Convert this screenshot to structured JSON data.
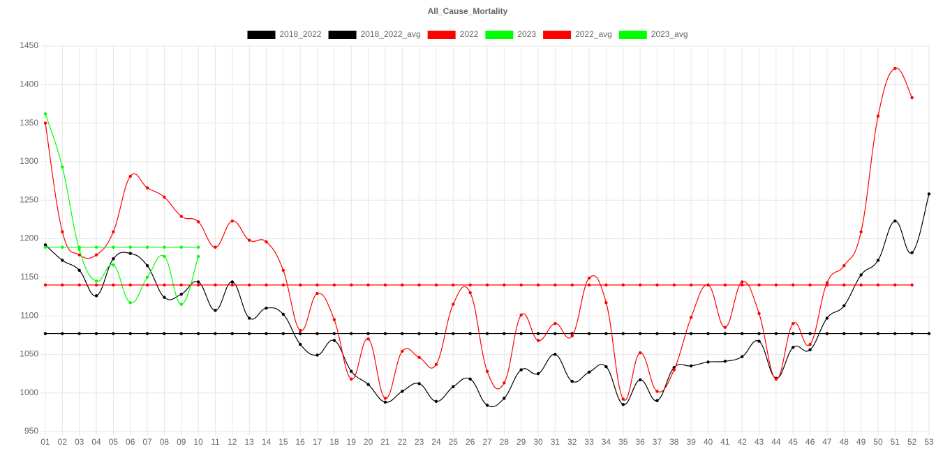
{
  "chart_data": {
    "type": "line",
    "title": "All_Cause_Mortality",
    "categories": [
      "01",
      "02",
      "03",
      "04",
      "05",
      "06",
      "07",
      "08",
      "09",
      "10",
      "11",
      "12",
      "13",
      "14",
      "15",
      "16",
      "17",
      "18",
      "19",
      "20",
      "21",
      "22",
      "23",
      "24",
      "25",
      "26",
      "27",
      "28",
      "29",
      "30",
      "31",
      "32",
      "33",
      "34",
      "35",
      "36",
      "37",
      "38",
      "39",
      "40",
      "41",
      "42",
      "43",
      "44",
      "45",
      "46",
      "47",
      "48",
      "49",
      "50",
      "51",
      "52",
      "53"
    ],
    "series": [
      {
        "name": "2018_2022",
        "color": "#000000",
        "values": [
          1192,
          1172,
          1159,
          1126,
          1174,
          1181,
          1165,
          1124,
          1128,
          1144,
          1107,
          1144,
          1097,
          1110,
          1102,
          1063,
          1049,
          1068,
          1028,
          1011,
          988,
          1002,
          1012,
          989,
          1008,
          1018,
          984,
          993,
          1030,
          1025,
          1050,
          1015,
          1027,
          1034,
          985,
          1017,
          990,
          1033,
          1035,
          1040,
          1041,
          1047,
          1067,
          1019,
          1059,
          1056,
          1097,
          1113,
          1153,
          1172,
          1223,
          1182,
          1258
        ]
      },
      {
        "name": "2018_2022_avg",
        "color": "#000000",
        "values": [
          1077,
          1077,
          1077,
          1077,
          1077,
          1077,
          1077,
          1077,
          1077,
          1077,
          1077,
          1077,
          1077,
          1077,
          1077,
          1077,
          1077,
          1077,
          1077,
          1077,
          1077,
          1077,
          1077,
          1077,
          1077,
          1077,
          1077,
          1077,
          1077,
          1077,
          1077,
          1077,
          1077,
          1077,
          1077,
          1077,
          1077,
          1077,
          1077,
          1077,
          1077,
          1077,
          1077,
          1077,
          1077,
          1077,
          1077,
          1077,
          1077,
          1077,
          1077,
          1077,
          1077
        ]
      },
      {
        "name": "2022",
        "color": "#ff0000",
        "values": [
          1350,
          1209,
          1179,
          1179,
          1209,
          1281,
          1266,
          1254,
          1229,
          1222,
          1189,
          1223,
          1198,
          1196,
          1159,
          1081,
          1129,
          1095,
          1018,
          1070,
          993,
          1054,
          1046,
          1037,
          1115,
          1130,
          1028,
          1013,
          1101,
          1068,
          1090,
          1074,
          1149,
          1117,
          992,
          1052,
          1002,
          1030,
          1098,
          1140,
          1085,
          1144,
          1103,
          1018,
          1090,
          1063,
          1143,
          1165,
          1209,
          1359,
          1421,
          1383,
          null
        ]
      },
      {
        "name": "2023",
        "color": "#00ff00",
        "values": [
          1362,
          1293,
          1186,
          1145,
          1166,
          1117,
          1150,
          1177,
          1115,
          1177,
          null,
          null,
          null,
          null,
          null,
          null,
          null,
          null,
          null,
          null,
          null,
          null,
          null,
          null,
          null,
          null,
          null,
          null,
          null,
          null,
          null,
          null,
          null,
          null,
          null,
          null,
          null,
          null,
          null,
          null,
          null,
          null,
          null,
          null,
          null,
          null,
          null,
          null,
          null,
          null,
          null,
          null,
          null
        ]
      },
      {
        "name": "2022_avg",
        "color": "#ff0000",
        "values": [
          1140,
          1140,
          1140,
          1140,
          1140,
          1140,
          1140,
          1140,
          1140,
          1140,
          1140,
          1140,
          1140,
          1140,
          1140,
          1140,
          1140,
          1140,
          1140,
          1140,
          1140,
          1140,
          1140,
          1140,
          1140,
          1140,
          1140,
          1140,
          1140,
          1140,
          1140,
          1140,
          1140,
          1140,
          1140,
          1140,
          1140,
          1140,
          1140,
          1140,
          1140,
          1140,
          1140,
          1140,
          1140,
          1140,
          1140,
          1140,
          1140,
          1140,
          1140,
          1140,
          null
        ]
      },
      {
        "name": "2023_avg",
        "color": "#00ff00",
        "values": [
          1189,
          1189,
          1189,
          1189,
          1189,
          1189,
          1189,
          1189,
          1189,
          1189,
          null,
          null,
          null,
          null,
          null,
          null,
          null,
          null,
          null,
          null,
          null,
          null,
          null,
          null,
          null,
          null,
          null,
          null,
          null,
          null,
          null,
          null,
          null,
          null,
          null,
          null,
          null,
          null,
          null,
          null,
          null,
          null,
          null,
          null,
          null,
          null,
          null,
          null,
          null,
          null,
          null,
          null,
          null
        ]
      }
    ],
    "ylim": [
      950,
      1450
    ],
    "yticks": [
      950,
      1000,
      1050,
      1100,
      1150,
      1200,
      1250,
      1300,
      1350,
      1400,
      1450
    ],
    "grid": true,
    "legend": "top"
  }
}
